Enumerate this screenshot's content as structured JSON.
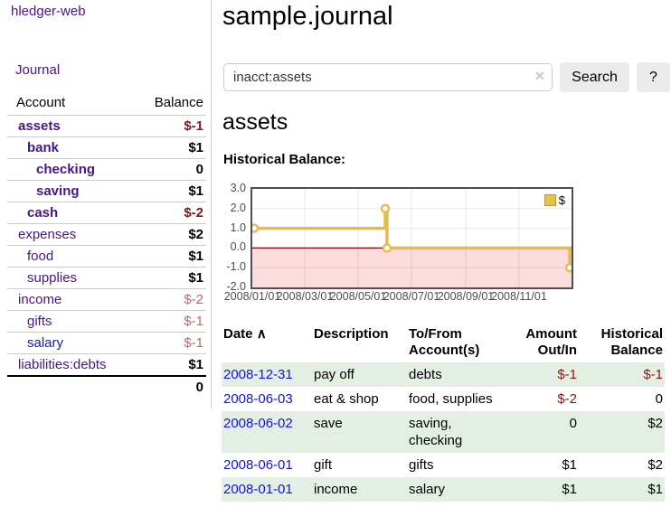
{
  "sidebar": {
    "app_title": "hledger-web",
    "nav_journal": "Journal",
    "accounts": {
      "col_account": "Account",
      "col_balance": "Balance",
      "rows": [
        {
          "name": "assets",
          "indent": 1,
          "bold": true,
          "name_style": "purple",
          "balance": "$-1",
          "balance_style": "neg"
        },
        {
          "name": "bank",
          "indent": 2,
          "bold": true,
          "name_style": "purple",
          "balance": "$1",
          "balance_style": "pos"
        },
        {
          "name": "checking",
          "indent": 3,
          "bold": true,
          "name_style": "purple",
          "balance": "0",
          "balance_style": "pos"
        },
        {
          "name": "saving",
          "indent": 3,
          "bold": true,
          "name_style": "purple",
          "balance": "$1",
          "balance_style": "pos"
        },
        {
          "name": "cash",
          "indent": 2,
          "bold": true,
          "name_style": "purple",
          "balance": "$-2",
          "balance_style": "neg"
        },
        {
          "name": "expenses",
          "indent": 1,
          "bold": false,
          "name_style": "purple",
          "balance": "$2",
          "balance_style": "pos"
        },
        {
          "name": "food",
          "indent": 2,
          "bold": false,
          "name_style": "purple",
          "balance": "$1",
          "balance_style": "pos"
        },
        {
          "name": "supplies",
          "indent": 2,
          "bold": false,
          "name_style": "purple",
          "balance": "$1",
          "balance_style": "pos"
        },
        {
          "name": "income",
          "indent": 1,
          "bold": false,
          "name_style": "purple",
          "balance": "$-2",
          "balance_style": "negfaded"
        },
        {
          "name": "gifts",
          "indent": 2,
          "bold": false,
          "name_style": "purple",
          "balance": "$-1",
          "balance_style": "negfaded"
        },
        {
          "name": "salary",
          "indent": 2,
          "bold": false,
          "name_style": "blue",
          "balance": "$-1",
          "balance_style": "negfaded"
        },
        {
          "name": "liabilities:debts",
          "indent": 1,
          "bold": false,
          "name_style": "purple",
          "balance": "$1",
          "balance_style": "pos"
        }
      ],
      "total": "0"
    }
  },
  "main": {
    "title": "sample.journal",
    "search": {
      "value": "inacct:assets",
      "clear_icon": "×",
      "button_label": "Search",
      "help_label": "?"
    },
    "account_heading": "assets",
    "chart_title": "Historical Balance:",
    "register_table": {
      "headers": {
        "date": "Date",
        "sort_icon": "∧",
        "description": "Description",
        "to_from": "To/From\nAccount(s)",
        "amount": "Amount\nOut/In",
        "balance": "Historical\nBalance"
      },
      "rows": [
        {
          "date": "2008-12-31",
          "description": "pay off",
          "to_from": "debts",
          "amount": "$-1",
          "amount_style": "neg",
          "balance": "$-1",
          "balance_style": "neg",
          "shaded": true
        },
        {
          "date": "2008-06-03",
          "description": "eat & shop",
          "to_from": "food, supplies",
          "amount": "$-2",
          "amount_style": "neg",
          "balance": "0",
          "balance_style": "pos",
          "shaded": false
        },
        {
          "date": "2008-06-02",
          "description": "save",
          "to_from": "saving,\nchecking",
          "amount": "0",
          "amount_style": "pos",
          "balance": "$2",
          "balance_style": "pos",
          "shaded": true
        },
        {
          "date": "2008-06-01",
          "description": "gift",
          "to_from": "gifts",
          "amount": "$1",
          "amount_style": "pos",
          "balance": "$2",
          "balance_style": "pos",
          "shaded": false
        },
        {
          "date": "2008-01-01",
          "description": "income",
          "to_from": "salary",
          "amount": "$1",
          "amount_style": "pos",
          "balance": "$1",
          "balance_style": "pos",
          "shaded": true
        }
      ]
    }
  },
  "chart_data": {
    "type": "line",
    "mode": "step",
    "title": "Historical Balance:",
    "series": [
      {
        "name": "$",
        "points": [
          [
            "2008-01-01",
            1
          ],
          [
            "2008-06-01",
            2
          ],
          [
            "2008-06-03",
            0
          ],
          [
            "2008-12-31",
            -1
          ]
        ]
      }
    ],
    "x_range": [
      "2008-01-01",
      "2008-12-31"
    ],
    "ylim": [
      -2,
      3
    ],
    "yticks": [
      {
        "label": "3.0",
        "value": 3
      },
      {
        "label": "2.0",
        "value": 2
      },
      {
        "label": "1.0",
        "value": 1
      },
      {
        "label": "0.0",
        "value": 0
      },
      {
        "label": "-1.0",
        "value": -1
      },
      {
        "label": "-2.0",
        "value": -2
      }
    ],
    "xticks": [
      {
        "label": "2008/01/01",
        "date": "2008-01-01"
      },
      {
        "label": "2008/03/01",
        "date": "2008-03-01"
      },
      {
        "label": "2008/05/01",
        "date": "2008-05-01"
      },
      {
        "label": "2008/07/01",
        "date": "2008-07-01"
      },
      {
        "label": "2008/09/01",
        "date": "2008-09-01"
      },
      {
        "label": "2008/11/01",
        "date": "2008-11-01"
      }
    ],
    "legend": {
      "label": "$",
      "position": "top-right"
    },
    "grid": true,
    "negative_region_shaded": true
  },
  "colors": {
    "accent_purple": "#4a148c",
    "link_blue": "#1515d6",
    "negative_strong": "#8c1414",
    "negative_faded": "#b8686f",
    "row_green": "#e2efe2",
    "series_gold": "#e4bd4e",
    "legend_gold_fill": "#e8c24a",
    "negative_region_pink": "#fcdcdc",
    "zero_line_red": "#8b0000",
    "chart_border": "#4f4f4f",
    "button_bg": "#ebebeb"
  }
}
